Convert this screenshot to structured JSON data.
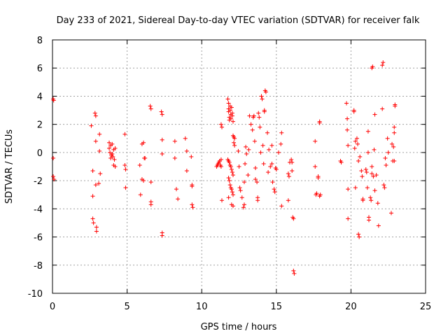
{
  "chart_data": {
    "type": "scatter",
    "title": "Day 233 of 2021, Sidereal Day-to-day VTEC variation (SDTVAR) for receiver falk",
    "xlabel": "GPS time / hours",
    "ylabel": "SDTVAR / TECUs",
    "xlim": [
      0,
      25
    ],
    "ylim": [
      -10,
      8
    ],
    "xticks": [
      "0",
      "5",
      "10",
      "15",
      "20",
      "25"
    ],
    "yticks": [
      "-10",
      "-8",
      "-6",
      "-4",
      "-2",
      "0",
      "2",
      "4",
      "6",
      "8"
    ],
    "grid": true,
    "marker": "plus",
    "color": "#ff0000",
    "points": [
      [
        0.05,
        3.8
      ],
      [
        0.08,
        3.7
      ],
      [
        0.05,
        -0.4
      ],
      [
        0.05,
        -1.7
      ],
      [
        0.1,
        -1.9
      ],
      [
        2.6,
        1.9
      ],
      [
        2.7,
        -1.3
      ],
      [
        2.7,
        -3.1
      ],
      [
        2.7,
        -4.7
      ],
      [
        2.75,
        -5.0
      ],
      [
        2.85,
        2.8
      ],
      [
        2.9,
        2.6
      ],
      [
        2.9,
        0.8
      ],
      [
        2.9,
        -2.3
      ],
      [
        2.95,
        -5.3
      ],
      [
        2.95,
        -5.6
      ],
      [
        3.1,
        -2.2
      ],
      [
        3.15,
        1.3
      ],
      [
        3.15,
        0.1
      ],
      [
        3.2,
        -1.5
      ],
      [
        3.8,
        0.7
      ],
      [
        3.8,
        0.3
      ],
      [
        3.85,
        0.0
      ],
      [
        3.9,
        -0.4
      ],
      [
        3.9,
        0.5
      ],
      [
        3.95,
        -0.2
      ],
      [
        4.0,
        0.6
      ],
      [
        4.0,
        -0.1
      ],
      [
        4.05,
        -0.3
      ],
      [
        4.1,
        0.2
      ],
      [
        4.1,
        -0.9
      ],
      [
        4.15,
        -0.5
      ],
      [
        4.2,
        0.3
      ],
      [
        4.2,
        -1.0
      ],
      [
        4.85,
        1.3
      ],
      [
        4.85,
        -0.9
      ],
      [
        4.9,
        -1.2
      ],
      [
        4.9,
        -2.5
      ],
      [
        5.85,
        -0.9
      ],
      [
        5.9,
        -3.0
      ],
      [
        6.0,
        -1.9
      ],
      [
        6.0,
        0.6
      ],
      [
        6.1,
        -2.0
      ],
      [
        6.1,
        0.7
      ],
      [
        6.15,
        -0.4
      ],
      [
        6.2,
        -0.4
      ],
      [
        6.55,
        3.3
      ],
      [
        6.6,
        3.1
      ],
      [
        6.6,
        -2.1
      ],
      [
        6.6,
        -3.5
      ],
      [
        6.6,
        -3.7
      ],
      [
        7.3,
        2.9
      ],
      [
        7.35,
        2.7
      ],
      [
        7.35,
        0.9
      ],
      [
        7.35,
        -0.1
      ],
      [
        7.35,
        -5.7
      ],
      [
        7.35,
        -5.9
      ],
      [
        8.2,
        0.8
      ],
      [
        8.2,
        -0.4
      ],
      [
        8.3,
        -2.6
      ],
      [
        8.4,
        -3.3
      ],
      [
        8.9,
        1.0
      ],
      [
        9.0,
        0.1
      ],
      [
        9.0,
        -1.3
      ],
      [
        9.3,
        -0.3
      ],
      [
        9.35,
        -2.3
      ],
      [
        9.35,
        -2.4
      ],
      [
        9.35,
        -3.7
      ],
      [
        9.4,
        -3.9
      ],
      [
        11.0,
        -1.0
      ],
      [
        11.05,
        -0.9
      ],
      [
        11.1,
        -0.8
      ],
      [
        11.15,
        -0.7
      ],
      [
        11.2,
        -0.6
      ],
      [
        11.25,
        -0.9
      ],
      [
        11.3,
        -1.0
      ],
      [
        11.3,
        -0.5
      ],
      [
        11.3,
        2.0
      ],
      [
        11.35,
        1.8
      ],
      [
        11.35,
        -3.4
      ],
      [
        11.75,
        3.8
      ],
      [
        11.8,
        3.5
      ],
      [
        11.8,
        3.1
      ],
      [
        11.8,
        2.9
      ],
      [
        11.85,
        2.5
      ],
      [
        11.85,
        2.3
      ],
      [
        11.9,
        3.3
      ],
      [
        11.9,
        3.0
      ],
      [
        11.95,
        2.7
      ],
      [
        11.95,
        2.4
      ],
      [
        12.0,
        3.2
      ],
      [
        12.05,
        2.8
      ],
      [
        12.05,
        2.6
      ],
      [
        12.1,
        2.2
      ],
      [
        11.75,
        -0.5
      ],
      [
        11.8,
        -0.6
      ],
      [
        11.85,
        -0.7
      ],
      [
        11.9,
        -0.9
      ],
      [
        11.95,
        -1.0
      ],
      [
        12.0,
        -1.2
      ],
      [
        12.05,
        -1.4
      ],
      [
        12.1,
        -1.6
      ],
      [
        11.8,
        -1.8
      ],
      [
        11.85,
        -2.0
      ],
      [
        11.9,
        -2.3
      ],
      [
        11.95,
        -2.5
      ],
      [
        12.0,
        -2.6
      ],
      [
        12.05,
        -2.8
      ],
      [
        12.1,
        -3.0
      ],
      [
        11.8,
        -3.2
      ],
      [
        12.0,
        -3.7
      ],
      [
        12.1,
        -3.8
      ],
      [
        12.1,
        1.2
      ],
      [
        12.15,
        1.1
      ],
      [
        12.2,
        1.0
      ],
      [
        12.15,
        0.7
      ],
      [
        12.2,
        0.5
      ],
      [
        12.45,
        0.1
      ],
      [
        12.5,
        -1.0
      ],
      [
        12.55,
        -2.5
      ],
      [
        12.6,
        -2.7
      ],
      [
        12.7,
        -3.2
      ],
      [
        12.8,
        -3.9
      ],
      [
        12.85,
        -3.7
      ],
      [
        12.85,
        -2.1
      ],
      [
        12.9,
        -0.8
      ],
      [
        12.95,
        0.4
      ],
      [
        13.0,
        -0.1
      ],
      [
        13.1,
        -1.6
      ],
      [
        13.15,
        0.2
      ],
      [
        13.2,
        2.6
      ],
      [
        13.3,
        2.0
      ],
      [
        13.4,
        1.6
      ],
      [
        13.45,
        2.5
      ],
      [
        13.5,
        2.6
      ],
      [
        13.55,
        0.8
      ],
      [
        13.6,
        -1.1
      ],
      [
        13.6,
        -1.9
      ],
      [
        13.7,
        -2.1
      ],
      [
        13.75,
        -3.2
      ],
      [
        13.75,
        -3.4
      ],
      [
        13.8,
        2.8
      ],
      [
        13.85,
        2.5
      ],
      [
        13.9,
        1.8
      ],
      [
        13.95,
        0.0
      ],
      [
        14.0,
        4.0
      ],
      [
        14.05,
        3.8
      ],
      [
        14.1,
        0.5
      ],
      [
        14.15,
        -0.8
      ],
      [
        14.2,
        3.0
      ],
      [
        14.2,
        2.9
      ],
      [
        14.25,
        4.4
      ],
      [
        14.3,
        4.3
      ],
      [
        14.4,
        1.4
      ],
      [
        14.45,
        -1.4
      ],
      [
        14.5,
        0.2
      ],
      [
        14.6,
        -1.0
      ],
      [
        14.7,
        0.5
      ],
      [
        14.7,
        -0.8
      ],
      [
        14.75,
        -2.1
      ],
      [
        14.85,
        -2.6
      ],
      [
        14.9,
        -2.8
      ],
      [
        14.95,
        -1.1
      ],
      [
        15.0,
        -1.2
      ],
      [
        15.15,
        0.0
      ],
      [
        15.3,
        0.6
      ],
      [
        15.35,
        1.4
      ],
      [
        15.35,
        -3.8
      ],
      [
        15.8,
        -1.5
      ],
      [
        15.85,
        -1.7
      ],
      [
        15.8,
        -3.4
      ],
      [
        15.9,
        -0.7
      ],
      [
        16.0,
        -0.5
      ],
      [
        16.05,
        -0.7
      ],
      [
        16.05,
        -1.3
      ],
      [
        16.1,
        -4.6
      ],
      [
        16.15,
        -4.7
      ],
      [
        16.15,
        -8.4
      ],
      [
        16.2,
        -8.6
      ],
      [
        17.6,
        0.8
      ],
      [
        17.6,
        -1.0
      ],
      [
        17.65,
        -3.0
      ],
      [
        17.7,
        -2.9
      ],
      [
        17.8,
        -1.7
      ],
      [
        17.8,
        -1.8
      ],
      [
        17.9,
        2.1
      ],
      [
        17.9,
        2.2
      ],
      [
        17.9,
        -3.1
      ],
      [
        17.95,
        -3.0
      ],
      [
        19.3,
        -0.6
      ],
      [
        19.35,
        -0.7
      ],
      [
        19.7,
        3.5
      ],
      [
        19.75,
        2.4
      ],
      [
        19.75,
        1.6
      ],
      [
        19.8,
        0.5
      ],
      [
        19.8,
        -2.6
      ],
      [
        19.8,
        -4.7
      ],
      [
        20.2,
        3.0
      ],
      [
        20.2,
        2.9
      ],
      [
        20.25,
        0.3
      ],
      [
        20.3,
        0.8
      ],
      [
        20.3,
        -2.5
      ],
      [
        20.4,
        1.0
      ],
      [
        20.45,
        0.6
      ],
      [
        20.5,
        -0.6
      ],
      [
        20.5,
        -5.8
      ],
      [
        20.55,
        -6.0
      ],
      [
        20.6,
        -0.3
      ],
      [
        20.7,
        -1.3
      ],
      [
        20.75,
        -1.7
      ],
      [
        20.8,
        -3.3
      ],
      [
        20.8,
        -3.4
      ],
      [
        21.0,
        -1.2
      ],
      [
        21.05,
        -1.4
      ],
      [
        21.1,
        -2.5
      ],
      [
        21.15,
        1.5
      ],
      [
        21.15,
        0.0
      ],
      [
        21.2,
        -4.6
      ],
      [
        21.2,
        -4.8
      ],
      [
        21.3,
        -3.2
      ],
      [
        21.35,
        -3.4
      ],
      [
        21.4,
        -1.0
      ],
      [
        21.4,
        -1.5
      ],
      [
        21.4,
        6.0
      ],
      [
        21.45,
        6.1
      ],
      [
        21.5,
        -1.7
      ],
      [
        21.55,
        0.2
      ],
      [
        21.6,
        2.7
      ],
      [
        21.6,
        -2.7
      ],
      [
        21.7,
        -1.6
      ],
      [
        21.8,
        -3.6
      ],
      [
        21.85,
        -5.2
      ],
      [
        22.1,
        3.1
      ],
      [
        22.1,
        6.2
      ],
      [
        22.15,
        6.4
      ],
      [
        22.2,
        -2.3
      ],
      [
        22.25,
        -2.5
      ],
      [
        22.3,
        -0.4
      ],
      [
        22.35,
        -0.9
      ],
      [
        22.45,
        1.0
      ],
      [
        22.5,
        0.0
      ],
      [
        22.7,
        -4.3
      ],
      [
        22.75,
        0.6
      ],
      [
        22.8,
        -0.6
      ],
      [
        22.85,
        0.4
      ],
      [
        22.9,
        -0.6
      ],
      [
        22.9,
        1.4
      ],
      [
        22.9,
        1.8
      ],
      [
        22.95,
        3.3
      ],
      [
        22.95,
        3.4
      ]
    ]
  }
}
